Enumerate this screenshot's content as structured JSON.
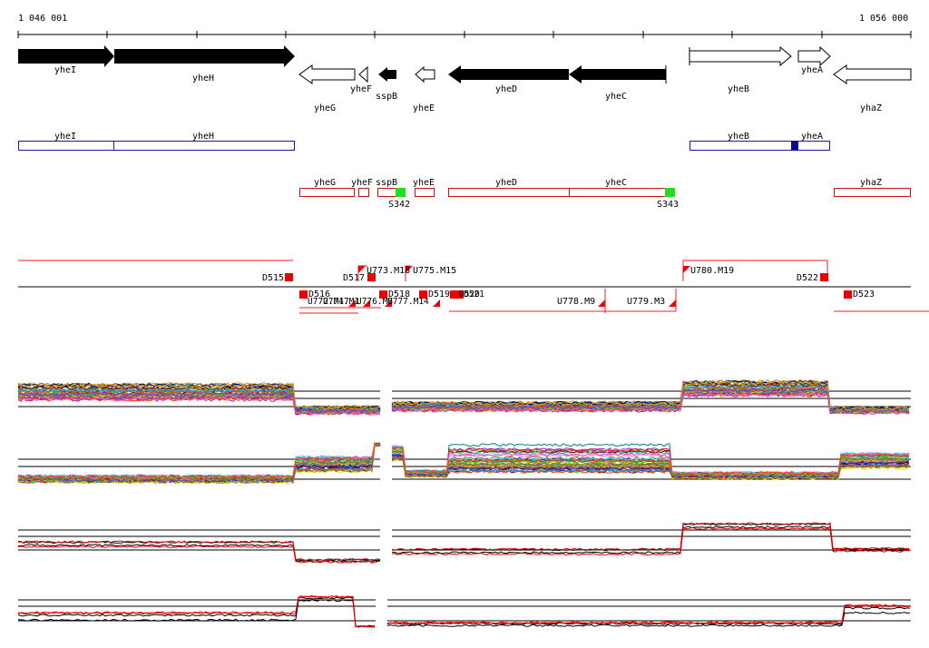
{
  "ruler": {
    "start": "1 046 001",
    "end": "1 056 000"
  },
  "genes_top": {
    "forward": [
      "yheI",
      "yheH",
      "yheB",
      "yheA"
    ],
    "reverse": [
      "yheG",
      "yheF",
      "sspB",
      "yheE",
      "yheD",
      "yheC",
      "yhaZ"
    ]
  },
  "operons_blue": [
    "yheI",
    "yheH",
    "yheB",
    "yheA"
  ],
  "operons_red": [
    "yheG",
    "yheF",
    "sspB",
    "yheE",
    "yheD",
    "yheC",
    "yhaZ"
  ],
  "sites_green": [
    "S342",
    "S343"
  ],
  "tss_upper": [
    "D515",
    "D517",
    "U773.M18",
    "U775.M15",
    "U780.M19",
    "D522"
  ],
  "tss_lower": [
    "D516",
    "U772.M17",
    "U774.M1",
    "U776.M8",
    "D518",
    "U777.M14",
    "D519",
    "D520",
    "D521",
    "U778.M9",
    "U779.M3",
    "D523"
  ],
  "colors": {
    "gene_filled": "#000000",
    "operon_blue": "#1a1aa6",
    "operon_red": "#cc1111",
    "site_green": "#22dd22",
    "tss_red": "#ee0000",
    "series_highlight": "#e00000"
  }
}
